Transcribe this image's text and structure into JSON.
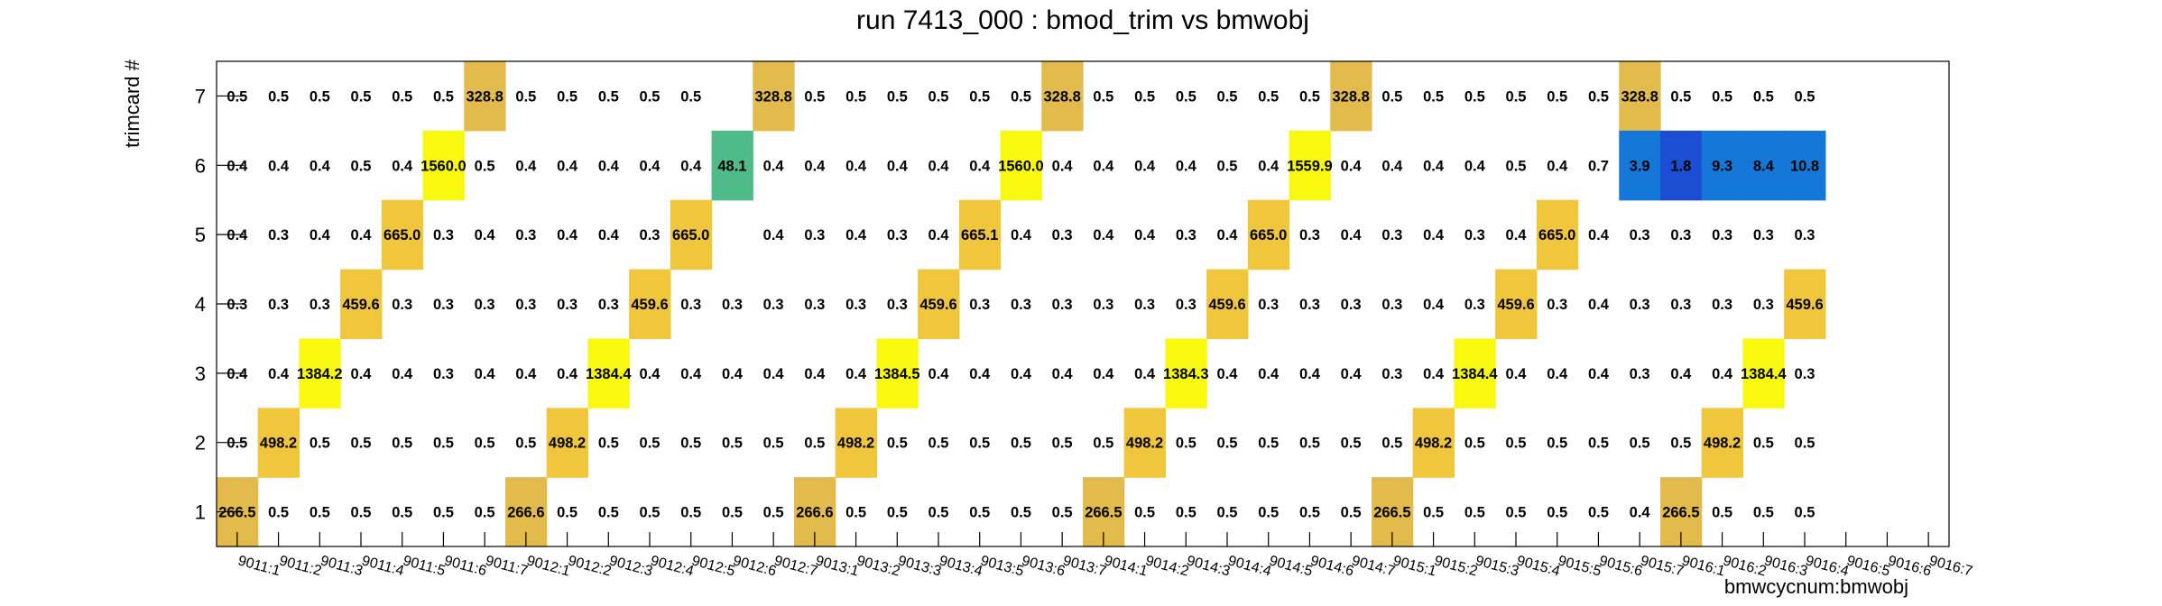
{
  "chart_data": {
    "type": "heatmap",
    "title": "run 7413_000 : bmod_trim vs bmwobj",
    "xlabel": "bmwcycnum:bmwobj",
    "ylabel": "trimcard #",
    "categories": [
      "9011:1",
      "9011:2",
      "9011:3",
      "9011:4",
      "9011:5",
      "9011:6",
      "9011:7",
      "9012:1",
      "9012:2",
      "9012:3",
      "9012:4",
      "9012:5",
      "9012:6",
      "9012:7",
      "9013:1",
      "9013:2",
      "9013:3",
      "9013:4",
      "9013:5",
      "9013:6",
      "9013:7",
      "9014:1",
      "9014:2",
      "9014:3",
      "9014:4",
      "9014:5",
      "9014:6",
      "9014:7",
      "9015:1",
      "9015:2",
      "9015:3",
      "9015:4",
      "9015:5",
      "9015:6",
      "9015:7",
      "9016:1",
      "9016:2",
      "9016:3",
      "9016:4",
      "9016:5",
      "9016:6",
      "9016:7"
    ],
    "y_categories": [
      "1",
      "2",
      "3",
      "4",
      "5",
      "6",
      "7"
    ],
    "rows": [
      {
        "y": "7",
        "labels": [
          "0.5",
          "0.5",
          "0.5",
          "0.5",
          "0.5",
          "0.5",
          "328.8",
          "0.5",
          "0.5",
          "0.5",
          "0.5",
          "0.5",
          "",
          "328.8",
          "0.5",
          "0.5",
          "0.5",
          "0.5",
          "0.5",
          "0.5",
          "328.8",
          "0.5",
          "0.5",
          "0.5",
          "0.5",
          "0.5",
          "0.5",
          "328.8",
          "0.5",
          "0.5",
          "0.5",
          "0.5",
          "0.5",
          "0.5",
          "328.8",
          "0.5",
          "0.5",
          "0.5",
          "0.5",
          "",
          "",
          ""
        ]
      },
      {
        "y": "6",
        "labels": [
          "0.4",
          "0.4",
          "0.4",
          "0.5",
          "0.4",
          "1560.0",
          "0.5",
          "0.4",
          "0.4",
          "0.4",
          "0.4",
          "0.4",
          "48.1",
          "0.4",
          "0.4",
          "0.4",
          "0.4",
          "0.4",
          "0.4",
          "1560.0",
          "0.4",
          "0.4",
          "0.4",
          "0.4",
          "0.5",
          "0.4",
          "1559.9",
          "0.4",
          "0.4",
          "0.4",
          "0.4",
          "0.5",
          "0.4",
          "0.7",
          "3.9",
          "1.8",
          "9.3",
          "8.4",
          "10.8",
          "",
          "",
          ""
        ]
      },
      {
        "y": "5",
        "labels": [
          "0.4",
          "0.3",
          "0.4",
          "0.4",
          "665.0",
          "0.3",
          "0.4",
          "0.3",
          "0.4",
          "0.4",
          "0.3",
          "665.0",
          "",
          "0.4",
          "0.3",
          "0.4",
          "0.3",
          "0.4",
          "665.1",
          "0.4",
          "0.3",
          "0.4",
          "0.4",
          "0.3",
          "0.4",
          "665.0",
          "0.3",
          "0.4",
          "0.3",
          "0.4",
          "0.3",
          "0.4",
          "665.0",
          "0.4",
          "0.3",
          "0.3",
          "0.3",
          "0.3",
          "0.3",
          "",
          "",
          ""
        ]
      },
      {
        "y": "4",
        "labels": [
          "0.3",
          "0.3",
          "0.3",
          "459.6",
          "0.3",
          "0.3",
          "0.3",
          "0.3",
          "0.3",
          "0.3",
          "459.6",
          "0.3",
          "0.3",
          "0.3",
          "0.3",
          "0.3",
          "0.3",
          "459.6",
          "0.3",
          "0.3",
          "0.3",
          "0.3",
          "0.3",
          "0.3",
          "459.6",
          "0.3",
          "0.3",
          "0.3",
          "0.3",
          "0.4",
          "0.3",
          "459.6",
          "0.3",
          "0.4",
          "0.3",
          "0.3",
          "0.3",
          "0.3",
          "459.6",
          "",
          "",
          ""
        ]
      },
      {
        "y": "3",
        "labels": [
          "0.4",
          "0.4",
          "1384.2",
          "0.4",
          "0.4",
          "0.3",
          "0.4",
          "0.4",
          "0.4",
          "1384.4",
          "0.4",
          "0.4",
          "0.4",
          "0.4",
          "0.4",
          "0.4",
          "1384.5",
          "0.4",
          "0.4",
          "0.4",
          "0.4",
          "0.4",
          "0.4",
          "1384.3",
          "0.4",
          "0.4",
          "0.4",
          "0.4",
          "0.3",
          "0.4",
          "1384.4",
          "0.4",
          "0.4",
          "0.4",
          "0.3",
          "0.4",
          "0.4",
          "1384.4",
          "0.3",
          "",
          "",
          ""
        ]
      },
      {
        "y": "2",
        "labels": [
          "0.5",
          "498.2",
          "0.5",
          "0.5",
          "0.5",
          "0.5",
          "0.5",
          "0.5",
          "498.2",
          "0.5",
          "0.5",
          "0.5",
          "0.5",
          "0.5",
          "0.5",
          "498.2",
          "0.5",
          "0.5",
          "0.5",
          "0.5",
          "0.5",
          "0.5",
          "498.2",
          "0.5",
          "0.5",
          "0.5",
          "0.5",
          "0.5",
          "0.5",
          "498.2",
          "0.5",
          "0.5",
          "0.5",
          "0.5",
          "0.5",
          "0.5",
          "498.2",
          "0.5",
          "0.5",
          "",
          "",
          ""
        ]
      },
      {
        "y": "1",
        "labels": [
          "266.5",
          "0.5",
          "0.5",
          "0.5",
          "0.5",
          "0.5",
          "0.5",
          "266.6",
          "0.5",
          "0.5",
          "0.5",
          "0.5",
          "0.5",
          "0.5",
          "266.6",
          "0.5",
          "0.5",
          "0.5",
          "0.5",
          "0.5",
          "0.5",
          "266.5",
          "0.5",
          "0.5",
          "0.5",
          "0.5",
          "0.5",
          "0.5",
          "266.5",
          "0.5",
          "0.5",
          "0.5",
          "0.5",
          "0.5",
          "0.4",
          "266.5",
          "0.5",
          "0.5",
          "0.5",
          "",
          "",
          ""
        ]
      }
    ],
    "grid": false,
    "legend": "none",
    "colors": {
      "yellow": "#f9f90f",
      "gold": "#f0c63c",
      "tan": "#e2bb4c",
      "green": "#4fbb88",
      "blue": "#1577d8",
      "darkblue": "#1b4ed2",
      "cyan": "#0d97cf",
      "frame": "#000000"
    }
  }
}
